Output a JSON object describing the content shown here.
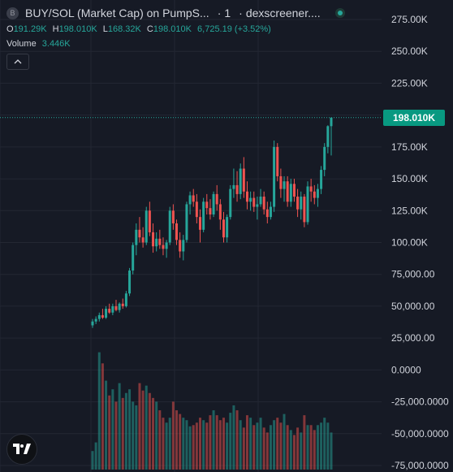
{
  "legend": {
    "symbol_badge": "B",
    "title": "BUY/SOL (Market Cap) on PumpS...",
    "interval": "1",
    "source": "dexscreener....",
    "ohlc": [
      {
        "key": "O",
        "value": "191.29K"
      },
      {
        "key": "H",
        "value": "198.010K"
      },
      {
        "key": "L",
        "value": "168.32K"
      },
      {
        "key": "C",
        "value": "198.010K"
      }
    ],
    "change": "6,725.19 (+3.52%)",
    "volume_label": "Volume",
    "volume_value": "3.446K",
    "collapse_icon": "chevron-up-icon"
  },
  "last_price_label": "198.010K",
  "colors": {
    "up": "#26a69a",
    "down": "#ef5350",
    "background": "#161a25",
    "grid": "#232733"
  },
  "logo_icon": "tradingview-logo-icon",
  "chart_data": {
    "type": "candlestick",
    "yaxis_ticks": [
      "275.00K",
      "250.00K",
      "225.00K",
      "200.00K",
      "175.00K",
      "150.00K",
      "125.00K",
      "100.00K",
      "75,000.00",
      "50,000.00",
      "25,000.00",
      "0.0000",
      "-25,000.0000",
      "-50,000.0000",
      "-75,000.0000"
    ],
    "yaxis_values": [
      275000,
      250000,
      225000,
      200000,
      175000,
      150000,
      125000,
      100000,
      75000,
      50000,
      25000,
      0,
      -25000,
      -50000,
      -75000
    ],
    "ylim": [
      -75000,
      290000
    ],
    "last_price": 198010,
    "candles": [
      [
        35000,
        40000,
        33000,
        38000
      ],
      [
        38000,
        42000,
        36000,
        40000
      ],
      [
        40000,
        45000,
        38000,
        43000
      ],
      [
        43000,
        48000,
        40000,
        41000
      ],
      [
        41000,
        50000,
        40000,
        48000
      ],
      [
        48000,
        52000,
        44000,
        45000
      ],
      [
        45000,
        52000,
        43000,
        50000
      ],
      [
        50000,
        55000,
        46000,
        47000
      ],
      [
        47000,
        53000,
        45000,
        52000
      ],
      [
        52000,
        56000,
        48000,
        50000
      ],
      [
        50000,
        62000,
        49000,
        60000
      ],
      [
        60000,
        80000,
        58000,
        78000
      ],
      [
        78000,
        100000,
        75000,
        98000
      ],
      [
        98000,
        115000,
        90000,
        110000
      ],
      [
        110000,
        120000,
        100000,
        104000
      ],
      [
        104000,
        112000,
        96000,
        100000
      ],
      [
        100000,
        128000,
        98000,
        125000
      ],
      [
        125000,
        132000,
        105000,
        108000
      ],
      [
        108000,
        115000,
        92000,
        97000
      ],
      [
        97000,
        108000,
        93000,
        103000
      ],
      [
        103000,
        110000,
        95000,
        98000
      ],
      [
        98000,
        104000,
        90000,
        95000
      ],
      [
        95000,
        102000,
        88000,
        100000
      ],
      [
        100000,
        128000,
        98000,
        125000
      ],
      [
        125000,
        130000,
        110000,
        115000
      ],
      [
        115000,
        118000,
        98000,
        102000
      ],
      [
        102000,
        108000,
        88000,
        93000
      ],
      [
        93000,
        106000,
        86000,
        102000
      ],
      [
        102000,
        132000,
        100000,
        130000
      ],
      [
        130000,
        140000,
        122000,
        137000
      ],
      [
        137000,
        142000,
        128000,
        132000
      ],
      [
        132000,
        138000,
        115000,
        120000
      ],
      [
        120000,
        126000,
        100000,
        110000
      ],
      [
        110000,
        135000,
        108000,
        132000
      ],
      [
        132000,
        138000,
        122000,
        127000
      ],
      [
        127000,
        134000,
        118000,
        122000
      ],
      [
        122000,
        140000,
        120000,
        138000
      ],
      [
        138000,
        145000,
        125000,
        130000
      ],
      [
        130000,
        134000,
        110000,
        118000
      ],
      [
        118000,
        124000,
        100000,
        104000
      ],
      [
        104000,
        122000,
        100000,
        120000
      ],
      [
        120000,
        145000,
        118000,
        142000
      ],
      [
        142000,
        158000,
        135000,
        145000
      ],
      [
        145000,
        156000,
        132000,
        138000
      ],
      [
        138000,
        162000,
        134000,
        158000
      ],
      [
        158000,
        167000,
        135000,
        140000
      ],
      [
        140000,
        148000,
        126000,
        132000
      ],
      [
        132000,
        140000,
        125000,
        135000
      ],
      [
        135000,
        140000,
        124000,
        128000
      ],
      [
        128000,
        136000,
        118000,
        130000
      ],
      [
        130000,
        142000,
        128000,
        136000
      ],
      [
        136000,
        140000,
        122000,
        126000
      ],
      [
        126000,
        132000,
        115000,
        120000
      ],
      [
        120000,
        132000,
        118000,
        128000
      ],
      [
        128000,
        180000,
        124000,
        175000
      ],
      [
        175000,
        178000,
        148000,
        152000
      ],
      [
        152000,
        158000,
        135000,
        142000
      ],
      [
        142000,
        152000,
        132000,
        148000
      ],
      [
        148000,
        152000,
        128000,
        132000
      ],
      [
        132000,
        150000,
        128000,
        146000
      ],
      [
        146000,
        150000,
        132000,
        136000
      ],
      [
        136000,
        142000,
        120000,
        126000
      ],
      [
        126000,
        140000,
        118000,
        136000
      ],
      [
        136000,
        138000,
        112000,
        116000
      ],
      [
        116000,
        148000,
        114000,
        144000
      ],
      [
        144000,
        150000,
        132000,
        140000
      ],
      [
        140000,
        145000,
        130000,
        135000
      ],
      [
        135000,
        146000,
        128000,
        142000
      ],
      [
        142000,
        160000,
        138000,
        157000
      ],
      [
        157000,
        178000,
        152000,
        175000
      ],
      [
        175000,
        192000,
        170000,
        191290
      ],
      [
        191290,
        198010,
        168320,
        198010
      ]
    ],
    "volumes": [
      15,
      22,
      95,
      86,
      72,
      60,
      65,
      55,
      70,
      58,
      62,
      65,
      55,
      52,
      70,
      64,
      68,
      62,
      58,
      55,
      48,
      42,
      38,
      42,
      55,
      48,
      45,
      42,
      40,
      35,
      36,
      38,
      42,
      40,
      38,
      44,
      48,
      44,
      40,
      42,
      38,
      46,
      52,
      48,
      40,
      34,
      44,
      42,
      36,
      38,
      42,
      34,
      30,
      36,
      40,
      42,
      38,
      45,
      36,
      32,
      28,
      34,
      30,
      44,
      36,
      36,
      32,
      36,
      38,
      42,
      38,
      30
    ]
  }
}
